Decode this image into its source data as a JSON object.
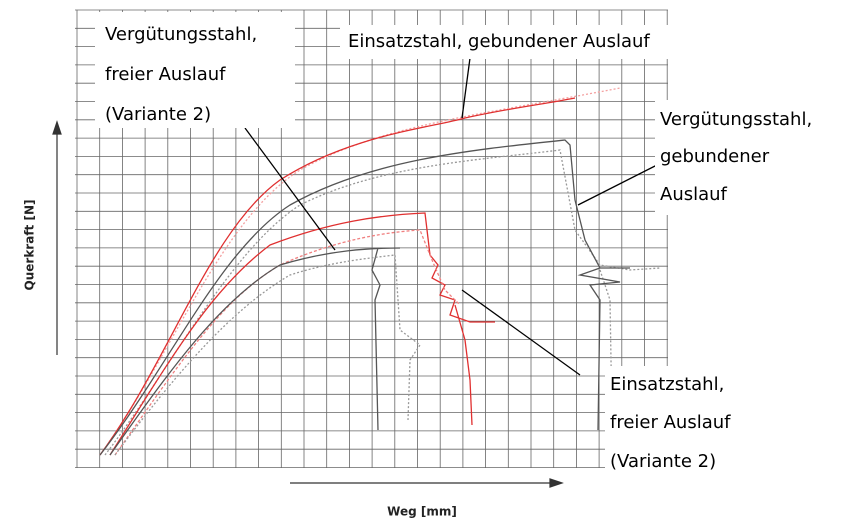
{
  "axes": {
    "y_label": "Querkraft [N]",
    "x_label": "Weg [mm]"
  },
  "annotations": [
    {
      "lines": [
        "Vergütungsstahl,",
        "freier Auslauf",
        "(Variante 2)"
      ]
    },
    {
      "lines": [
        "Einsatzstahl, gebundener Auslauf"
      ]
    },
    {
      "lines": [
        "Vergütungsstahl,",
        "gebundener",
        "Auslauf"
      ]
    },
    {
      "lines": [
        "Einsatzstahl,",
        "freier Auslauf",
        "(Variante 2)"
      ]
    }
  ]
}
